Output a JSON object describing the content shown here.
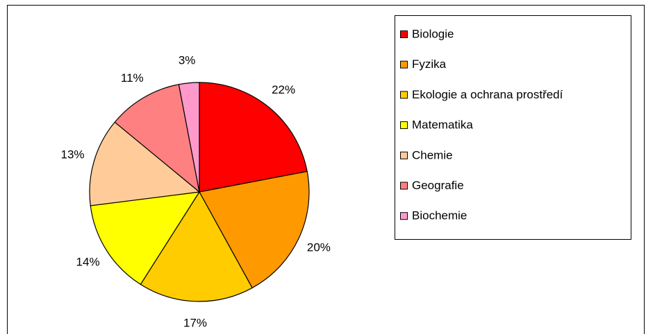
{
  "chart_data": {
    "type": "pie",
    "categories": [
      "Biologie",
      "Fyzika",
      "Ekologie a ochrana prostředí",
      "Matematika",
      "Chemie",
      "Geografie",
      "Biochemie"
    ],
    "values": [
      22,
      20,
      17,
      14,
      13,
      11,
      3
    ],
    "value_labels": [
      "22%",
      "20%",
      "17%",
      "14%",
      "13%",
      "11%",
      "3%"
    ],
    "colors": [
      "#ff0000",
      "#ff9900",
      "#ffcc00",
      "#ffff00",
      "#ffcc99",
      "#ff8080",
      "#ff99cc"
    ],
    "legend": "right"
  }
}
